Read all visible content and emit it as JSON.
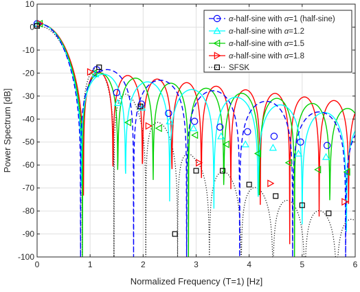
{
  "chart_data": {
    "type": "line",
    "xlabel": "Normalized Frequency (T=1) [Hz]",
    "ylabel": "Power Spectrum [dB]",
    "xlim": [
      0,
      6
    ],
    "ylim": [
      -100,
      10
    ],
    "xticks": [
      "0",
      "1",
      "2",
      "3",
      "4",
      "5",
      "6"
    ],
    "yticks": [
      "10",
      "0",
      "-10",
      "-20",
      "-30",
      "-40",
      "-50",
      "-60",
      "-70",
      "-80",
      "-90",
      "-100"
    ],
    "grid": true,
    "legend_position": "top-right",
    "series": [
      {
        "name": "α-half-sine with α=1 (half-sine)",
        "legend_prefix": "α",
        "legend_mid": "-half-sine with ",
        "legend_suffix": "=1 (half-sine)",
        "color": "#0000ff",
        "line": "dashed",
        "marker": "circle",
        "marker_points": [
          {
            "x": 0.0,
            "y": 1.5
          },
          {
            "x": 1.12,
            "y": -18.5
          },
          {
            "x": 1.5,
            "y": -28.5
          },
          {
            "x": 1.97,
            "y": -33.5
          },
          {
            "x": 2.48,
            "y": -37.5
          },
          {
            "x": 2.97,
            "y": -41
          },
          {
            "x": 3.45,
            "y": -43.5
          },
          {
            "x": 3.97,
            "y": -45.5
          },
          {
            "x": 4.47,
            "y": -47.5
          },
          {
            "x": 4.97,
            "y": -50
          },
          {
            "x": 5.47,
            "y": -51.5
          }
        ]
      },
      {
        "name": "α-half-sine with α=1.2",
        "legend_prefix": "α",
        "legend_mid": "-half-sine with ",
        "legend_suffix": "=1.2",
        "color": "#00ffff",
        "line": "solid",
        "marker": "triangle-up",
        "marker_points": [
          {
            "x": 0.0,
            "y": 1.5
          },
          {
            "x": 1.1,
            "y": -20.5
          },
          {
            "x": 1.52,
            "y": -33
          },
          {
            "x": 1.98,
            "y": -35
          },
          {
            "x": 2.5,
            "y": -41
          },
          {
            "x": 2.95,
            "y": -44
          },
          {
            "x": 3.47,
            "y": -47.5
          },
          {
            "x": 3.93,
            "y": -51
          },
          {
            "x": 4.45,
            "y": -52.5
          },
          {
            "x": 4.93,
            "y": -55
          },
          {
            "x": 5.45,
            "y": -56.5
          }
        ]
      },
      {
        "name": "α-half-sine with α=1.5",
        "legend_prefix": "α",
        "legend_mid": "-half-sine with ",
        "legend_suffix": "=1.5",
        "color": "#00d000",
        "line": "solid",
        "marker": "triangle-left",
        "marker_points": [
          {
            "x": 0.05,
            "y": 1.5
          },
          {
            "x": 1.07,
            "y": -20
          },
          {
            "x": 1.72,
            "y": -41.5
          },
          {
            "x": 2.3,
            "y": -44
          },
          {
            "x": 2.98,
            "y": -47
          },
          {
            "x": 3.57,
            "y": -51
          },
          {
            "x": 4.17,
            "y": -55
          },
          {
            "x": 4.75,
            "y": -59
          },
          {
            "x": 5.3,
            "y": -62
          },
          {
            "x": 5.85,
            "y": -63
          }
        ]
      },
      {
        "name": "α-half-sine with α=1.8",
        "legend_prefix": "α",
        "legend_mid": "-half-sine with ",
        "legend_suffix": "=1.8",
        "color": "#ff0000",
        "line": "solid",
        "marker": "triangle-right",
        "marker_points": [
          {
            "x": 0.05,
            "y": 1.5
          },
          {
            "x": 1.0,
            "y": -19.5
          },
          {
            "x": 2.1,
            "y": -43
          },
          {
            "x": 3.05,
            "y": -59
          },
          {
            "x": 4.4,
            "y": -68
          },
          {
            "x": 5.8,
            "y": -76
          }
        ]
      },
      {
        "name": "SFSK",
        "color": "#000000",
        "line": "dotted",
        "marker": "square",
        "marker_points": [
          {
            "x": 0.0,
            "y": 0.5
          },
          {
            "x": 1.17,
            "y": -17.5
          },
          {
            "x": 1.95,
            "y": -34.5
          },
          {
            "x": 2.6,
            "y": -90
          },
          {
            "x": 3.0,
            "y": -62.5
          },
          {
            "x": 3.5,
            "y": -62.5
          },
          {
            "x": 4.0,
            "y": -68.5
          },
          {
            "x": 4.5,
            "y": -73.5
          },
          {
            "x": 5.0,
            "y": -77.5
          },
          {
            "x": 5.5,
            "y": -81
          }
        ]
      }
    ]
  }
}
